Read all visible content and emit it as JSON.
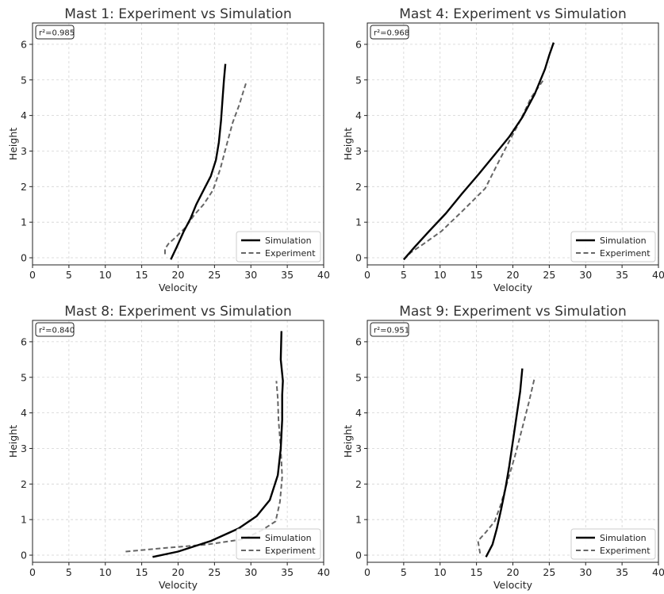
{
  "chart_data": [
    {
      "type": "line",
      "title": "Mast 1: Experiment vs Simulation",
      "xlabel": "Velocity",
      "ylabel": "Height",
      "xlim": [
        0,
        40
      ],
      "ylim": [
        -0.2,
        6.6
      ],
      "xticks": [
        "0",
        "5",
        "10",
        "15",
        "20",
        "25",
        "30",
        "35",
        "40"
      ],
      "yticks": [
        "0",
        "1",
        "2",
        "3",
        "4",
        "5",
        "6"
      ],
      "grid": true,
      "legend_position": "bottom-right",
      "annotation": "r²=0.985",
      "series": [
        {
          "name": "Simulation",
          "color": "#000000",
          "style": "solid",
          "x": [
            19.0,
            19.8,
            20.8,
            21.7,
            22.5,
            23.5,
            24.5,
            25.2,
            25.6,
            25.9,
            26.1,
            26.3,
            26.5
          ],
          "y": [
            -0.05,
            0.3,
            0.75,
            1.1,
            1.5,
            1.9,
            2.3,
            2.75,
            3.25,
            3.85,
            4.45,
            5.0,
            5.45
          ]
        },
        {
          "name": "Experiment",
          "color": "#666666",
          "style": "dashed",
          "x": [
            18.2,
            18.2,
            18.7,
            19.8,
            21.0,
            22.2,
            23.5,
            24.8,
            25.8,
            26.7,
            27.5,
            28.4,
            29.0,
            29.4
          ],
          "y": [
            0.1,
            0.25,
            0.4,
            0.6,
            0.85,
            1.2,
            1.5,
            1.9,
            2.5,
            3.2,
            3.8,
            4.3,
            4.7,
            4.95
          ]
        }
      ]
    },
    {
      "type": "line",
      "title": "Mast 4: Experiment vs Simulation",
      "xlabel": "Velocity",
      "ylabel": "Height",
      "xlim": [
        0,
        40
      ],
      "ylim": [
        -0.2,
        6.6
      ],
      "xticks": [
        "0",
        "5",
        "10",
        "15",
        "20",
        "25",
        "30",
        "35",
        "40"
      ],
      "yticks": [
        "0",
        "1",
        "2",
        "3",
        "4",
        "5",
        "6"
      ],
      "grid": true,
      "legend_position": "bottom-right",
      "annotation": "r²=0.968",
      "series": [
        {
          "name": "Simulation",
          "color": "#000000",
          "style": "solid",
          "x": [
            5.0,
            6.5,
            8.5,
            10.8,
            13.0,
            15.3,
            17.5,
            19.5,
            21.3,
            23.0,
            24.4,
            25.0,
            25.6
          ],
          "y": [
            -0.05,
            0.3,
            0.75,
            1.25,
            1.8,
            2.35,
            2.9,
            3.4,
            3.95,
            4.6,
            5.3,
            5.7,
            6.05
          ]
        },
        {
          "name": "Experiment",
          "color": "#666666",
          "style": "dashed",
          "x": [
            5.0,
            6.0,
            7.8,
            10.2,
            13.0,
            16.2,
            17.8,
            19.3,
            21.0,
            22.5,
            24.2
          ],
          "y": [
            -0.05,
            0.15,
            0.4,
            0.75,
            1.3,
            1.95,
            2.6,
            3.2,
            3.85,
            4.5,
            5.0
          ]
        }
      ]
    },
    {
      "type": "line",
      "title": "Mast 8: Experiment vs Simulation",
      "xlabel": "Velocity",
      "ylabel": "Height",
      "xlim": [
        0,
        40
      ],
      "ylim": [
        -0.2,
        6.6
      ],
      "xticks": [
        "0",
        "5",
        "10",
        "15",
        "20",
        "25",
        "30",
        "35",
        "40"
      ],
      "yticks": [
        "0",
        "1",
        "2",
        "3",
        "4",
        "5",
        "6"
      ],
      "grid": true,
      "legend_position": "bottom-right",
      "annotation": "r²=0.840",
      "series": [
        {
          "name": "Simulation",
          "color": "#000000",
          "style": "solid",
          "x": [
            16.5,
            20.0,
            24.5,
            28.3,
            30.8,
            32.6,
            33.7,
            34.1,
            34.3,
            34.3,
            34.4,
            34.1,
            34.2
          ],
          "y": [
            -0.05,
            0.1,
            0.4,
            0.75,
            1.1,
            1.55,
            2.25,
            3.0,
            3.8,
            4.5,
            4.9,
            5.5,
            6.3
          ]
        },
        {
          "name": "Experiment",
          "color": "#666666",
          "style": "dashed",
          "x": [
            12.8,
            18.0,
            24.0,
            29.0,
            31.5,
            33.4,
            34.0,
            34.3,
            34.1,
            33.8,
            33.7,
            33.5
          ],
          "y": [
            0.1,
            0.2,
            0.3,
            0.45,
            0.7,
            0.95,
            1.5,
            2.2,
            3.0,
            3.8,
            4.4,
            4.9
          ]
        }
      ]
    },
    {
      "type": "line",
      "title": "Mast 9: Experiment vs Simulation",
      "xlabel": "Velocity",
      "ylabel": "Height",
      "xlim": [
        0,
        40
      ],
      "ylim": [
        -0.2,
        6.6
      ],
      "xticks": [
        "0",
        "5",
        "10",
        "15",
        "20",
        "25",
        "30",
        "35",
        "40"
      ],
      "yticks": [
        "0",
        "1",
        "2",
        "3",
        "4",
        "5",
        "6"
      ],
      "grid": true,
      "legend_position": "bottom-right",
      "annotation": "r²=0.951",
      "series": [
        {
          "name": "Simulation",
          "color": "#000000",
          "style": "solid",
          "x": [
            16.3,
            17.2,
            17.8,
            18.4,
            19.0,
            19.5,
            20.0,
            20.5,
            21.0,
            21.3
          ],
          "y": [
            -0.05,
            0.3,
            0.75,
            1.3,
            1.9,
            2.5,
            3.2,
            3.9,
            4.6,
            5.25
          ]
        },
        {
          "name": "Experiment",
          "color": "#666666",
          "style": "dashed",
          "x": [
            15.5,
            15.2,
            16.3,
            17.5,
            18.3,
            19.3,
            20.3,
            21.2,
            22.2,
            23.0
          ],
          "y": [
            0.05,
            0.4,
            0.65,
            0.95,
            1.4,
            2.1,
            2.8,
            3.5,
            4.3,
            5.0
          ]
        }
      ]
    }
  ]
}
